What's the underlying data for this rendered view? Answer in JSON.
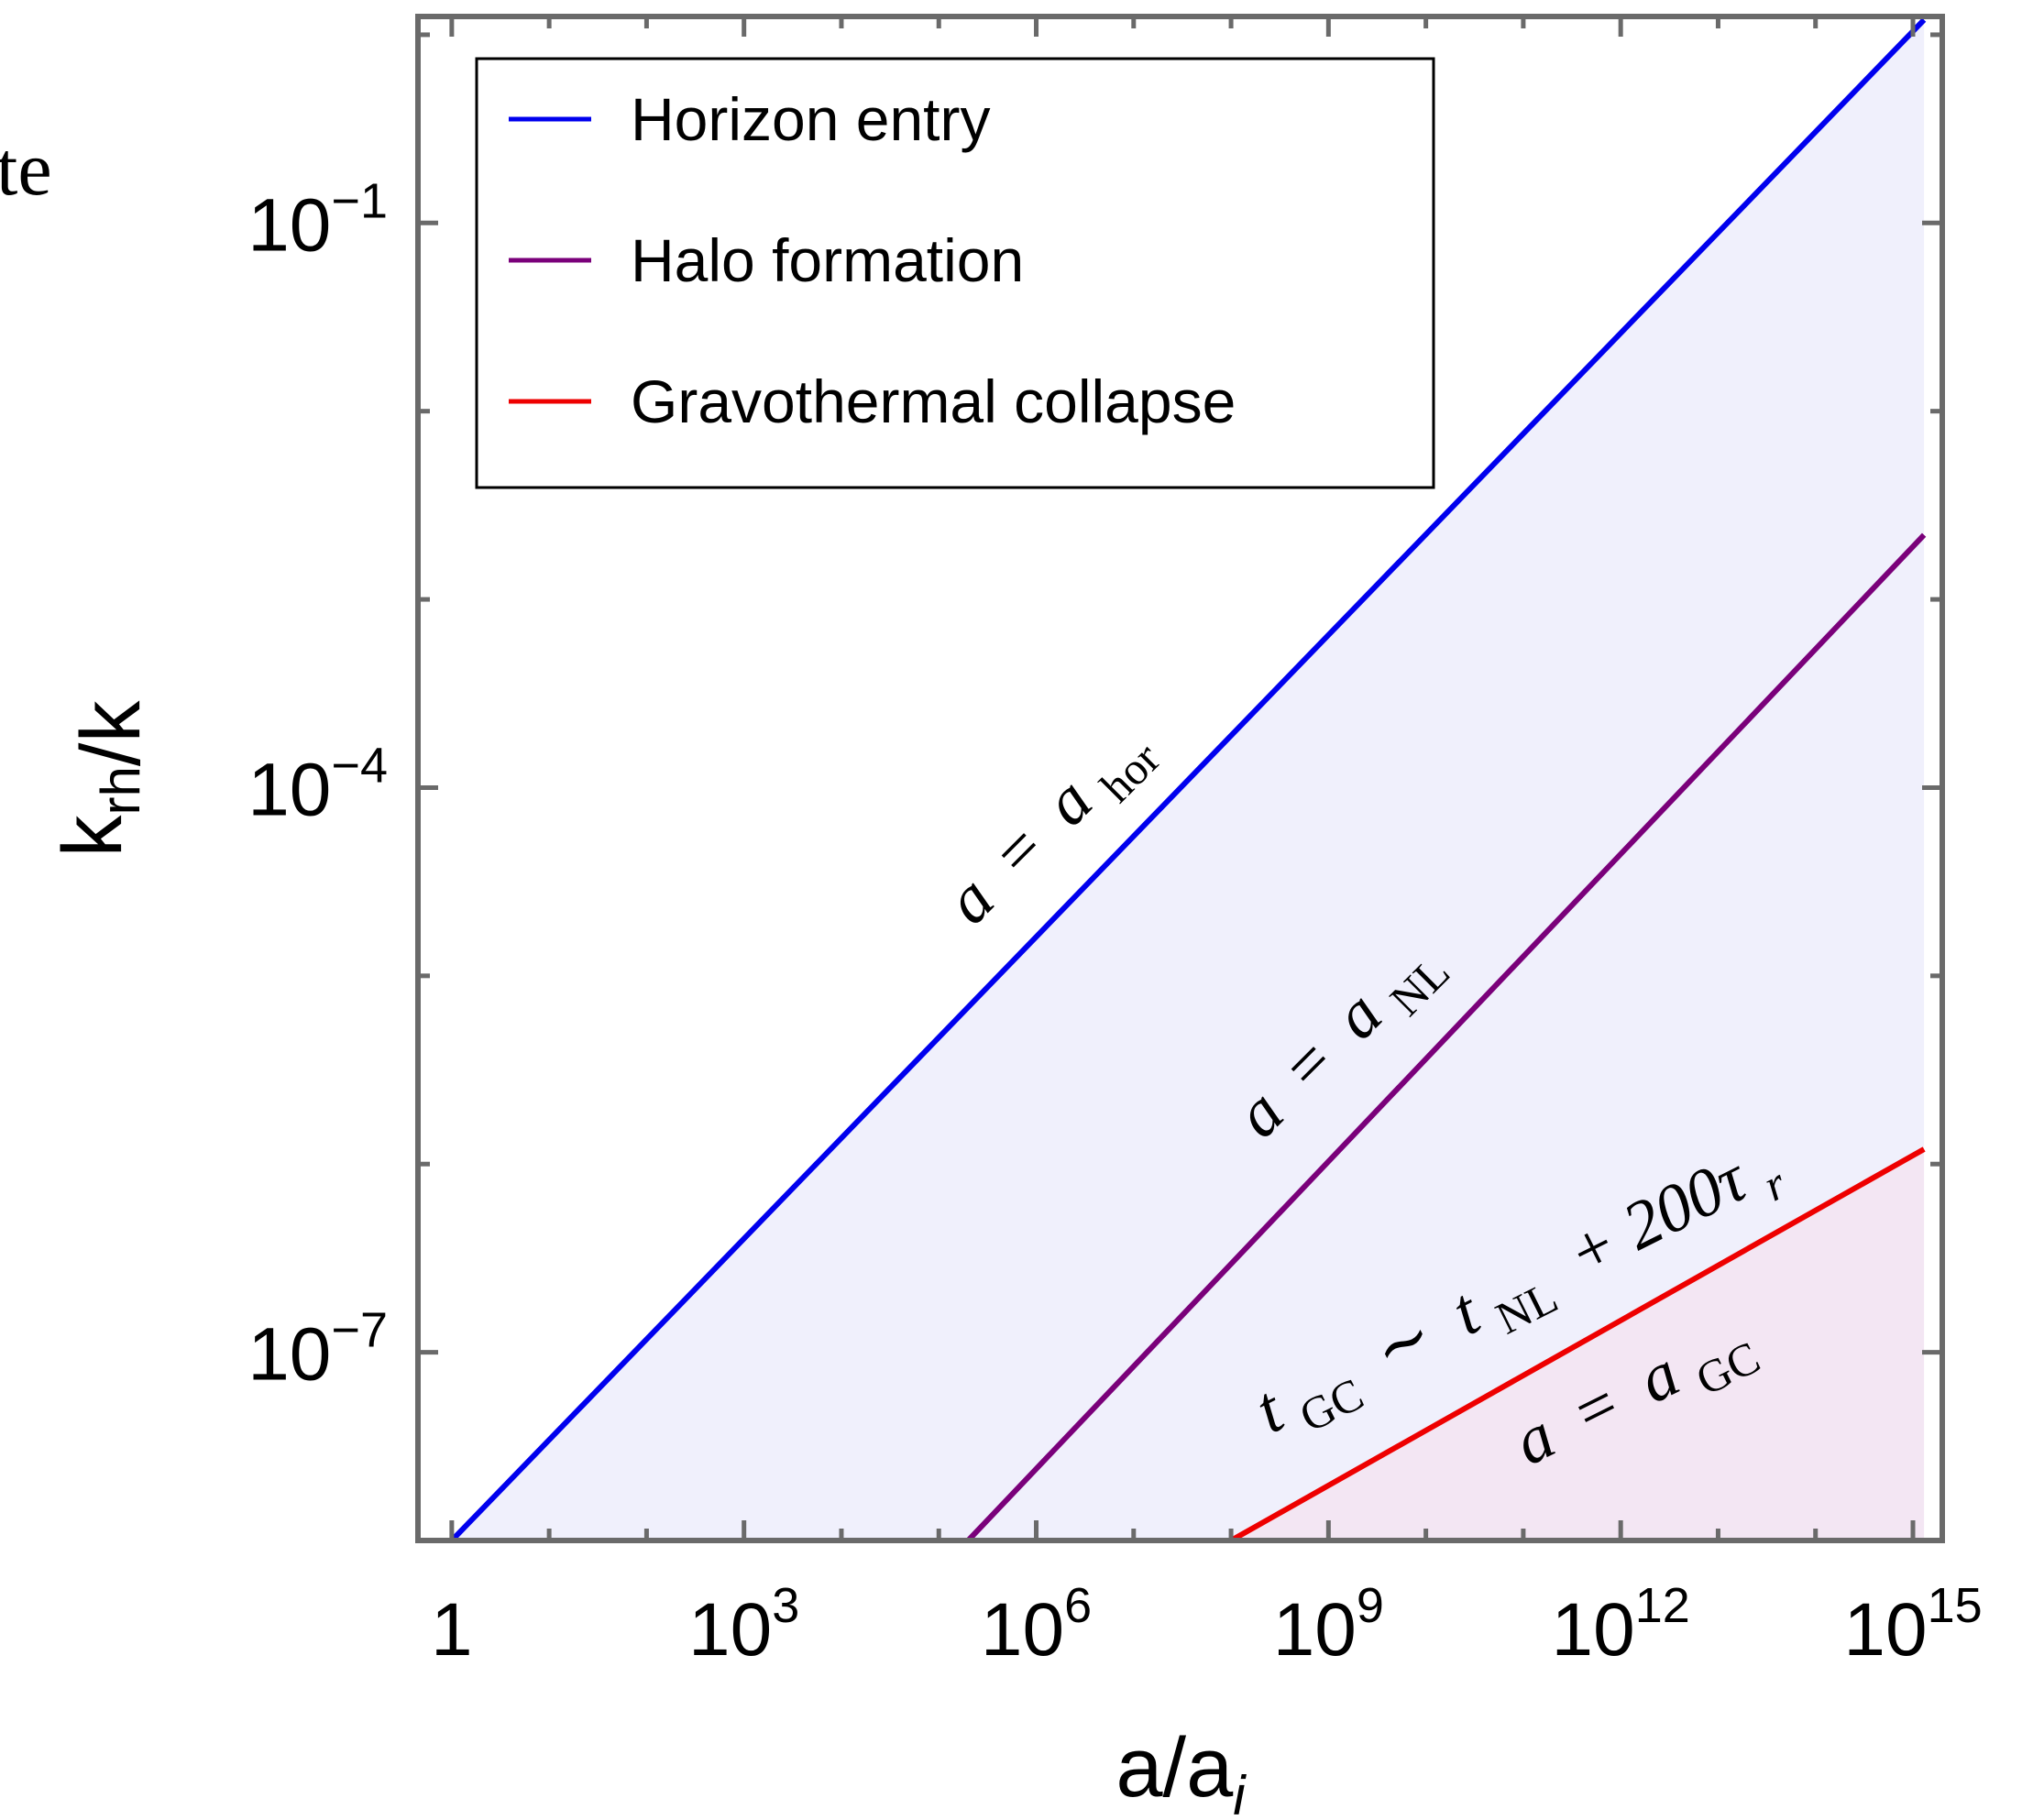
{
  "chart_data": {
    "type": "line",
    "x_scale": "log",
    "y_scale": "log",
    "xlabel": "a/a_i",
    "ylabel": "k_rh/k",
    "xlim": [
      0.45,
      2000000000000000.0
    ],
    "ylim": [
      1e-08,
      1.25
    ],
    "grid": false,
    "legend_position": "top-left",
    "x_ticks": [
      {
        "value": 1,
        "base": "1",
        "exp": ""
      },
      {
        "value": 1000.0,
        "base": "10",
        "exp": "3"
      },
      {
        "value": 1000000.0,
        "base": "10",
        "exp": "6"
      },
      {
        "value": 1000000000.0,
        "base": "10",
        "exp": "9"
      },
      {
        "value": 1000000000000.0,
        "base": "10",
        "exp": "12"
      },
      {
        "value": 1000000000000000.0,
        "base": "10",
        "exp": "15"
      }
    ],
    "y_ticks": [
      {
        "value": 0.1,
        "base": "10",
        "exp": "−1"
      },
      {
        "value": 0.0001,
        "base": "10",
        "exp": "−4"
      },
      {
        "value": 1e-07,
        "base": "10",
        "exp": "−7"
      }
    ],
    "series": [
      {
        "name": "Horizon entry",
        "color": "#0000ee",
        "x": [
          1,
          1300000000000000.0
        ],
        "y": [
          1e-08,
          1.2
        ]
      },
      {
        "name": "Halo formation",
        "color": "#7a007a",
        "x": [
          200000.0,
          1300000000000000.0
        ],
        "y": [
          1e-08,
          0.0022
        ]
      },
      {
        "name": "Gravothermal collapse",
        "color": "#ee0000",
        "x": [
          100000000.0,
          1300000000000000.0
        ],
        "y": [
          1e-08,
          1.2e-06
        ]
      }
    ],
    "annotations": [
      {
        "lhs": "a",
        "rel": "=",
        "rhs": "a",
        "sub": "hor"
      },
      {
        "lhs": "a",
        "rel": "=",
        "rhs": "a",
        "sub": "NL"
      },
      {
        "lhs": "t",
        "lhs_sub": "GC",
        "rel": "∼",
        "rhs": "t",
        "sub": "NL",
        "extra": "+ 200τ",
        "extra_sub": "r"
      },
      {
        "lhs": "a",
        "rel": "=",
        "rhs": "a",
        "sub": "GC"
      }
    ],
    "fill_colors": {
      "between_horizon_and_collapse": "#f0f0fc",
      "below_collapse": "#f3e6f3"
    },
    "frame_color": "#6a6a6a"
  },
  "cropped_margin_text": "te"
}
